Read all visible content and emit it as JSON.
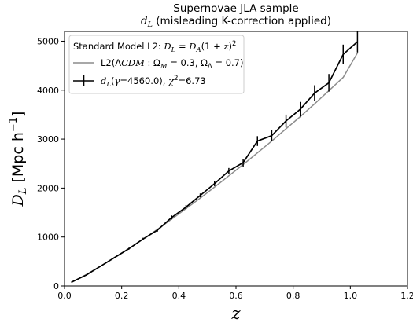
{
  "chart_data": {
    "type": "line",
    "title_line1": "Supernovae JLA sample",
    "title_line2_var": "d",
    "title_line2_sub": "L",
    "title_line2_rest": " (misleading K-correction applied)",
    "xlabel": "z",
    "ylabel_var": "D",
    "ylabel_sub": "L",
    "ylabel_units": " [Mpc h",
    "ylabel_units_sup": "−1",
    "ylabel_close": "]",
    "xlim": [
      0.0,
      1.2
    ],
    "ylim": [
      0,
      5200
    ],
    "xticks": [
      0.0,
      0.2,
      0.4,
      0.6,
      0.8,
      1.0,
      1.2
    ],
    "xtick_labels": [
      "0.0",
      "0.2",
      "0.4",
      "0.6",
      "0.8",
      "1.0",
      "1.2"
    ],
    "yticks": [
      0,
      1000,
      2000,
      3000,
      4000,
      5000
    ],
    "ytick_labels": [
      "0",
      "1000",
      "2000",
      "3000",
      "4000",
      "5000"
    ],
    "grid": false,
    "legend": {
      "placement": "top-left",
      "title": "Standard Model L2: D_L = D_A(1 + z)^2",
      "title_prefix": "Standard Model L2: ",
      "entries": [
        {
          "label": "L2(ΛCDM : Ω_M = 0.3, Ω_Λ = 0.7)",
          "color": "#8c8c8c"
        },
        {
          "label": "d_L(γ=4560.0), χ^2=6.73",
          "color": "#000000"
        }
      ]
    },
    "series": [
      {
        "name": "L2(ΛCDM : Ω_M = 0.3, Ω_Λ = 0.7)",
        "color": "#8c8c8c",
        "x": [
          0.025,
          0.075,
          0.125,
          0.175,
          0.225,
          0.275,
          0.325,
          0.375,
          0.425,
          0.475,
          0.525,
          0.575,
          0.625,
          0.675,
          0.725,
          0.775,
          0.825,
          0.875,
          0.925,
          0.975,
          1.025
        ],
        "y": [
          75,
          230,
          400,
          580,
          765,
          955,
          1155,
          1365,
          1580,
          1795,
          2020,
          2250,
          2480,
          2720,
          2960,
          3210,
          3460,
          3720,
          3990,
          4260,
          4760
        ]
      },
      {
        "name": "d_L(γ=4560.0), χ^2=6.73",
        "color": "#000000",
        "x": [
          0.025,
          0.075,
          0.125,
          0.175,
          0.225,
          0.275,
          0.325,
          0.375,
          0.425,
          0.475,
          0.525,
          0.575,
          0.625,
          0.675,
          0.725,
          0.775,
          0.825,
          0.875,
          0.925,
          0.975,
          1.025
        ],
        "y": [
          80,
          220,
          400,
          580,
          760,
          960,
          1140,
          1400,
          1610,
          1850,
          2090,
          2350,
          2520,
          2960,
          3070,
          3370,
          3610,
          3940,
          4150,
          4730,
          4990
        ],
        "yerr": [
          10,
          10,
          10,
          15,
          20,
          25,
          30,
          40,
          40,
          40,
          50,
          60,
          80,
          100,
          110,
          130,
          150,
          160,
          180,
          200,
          220
        ]
      }
    ]
  }
}
